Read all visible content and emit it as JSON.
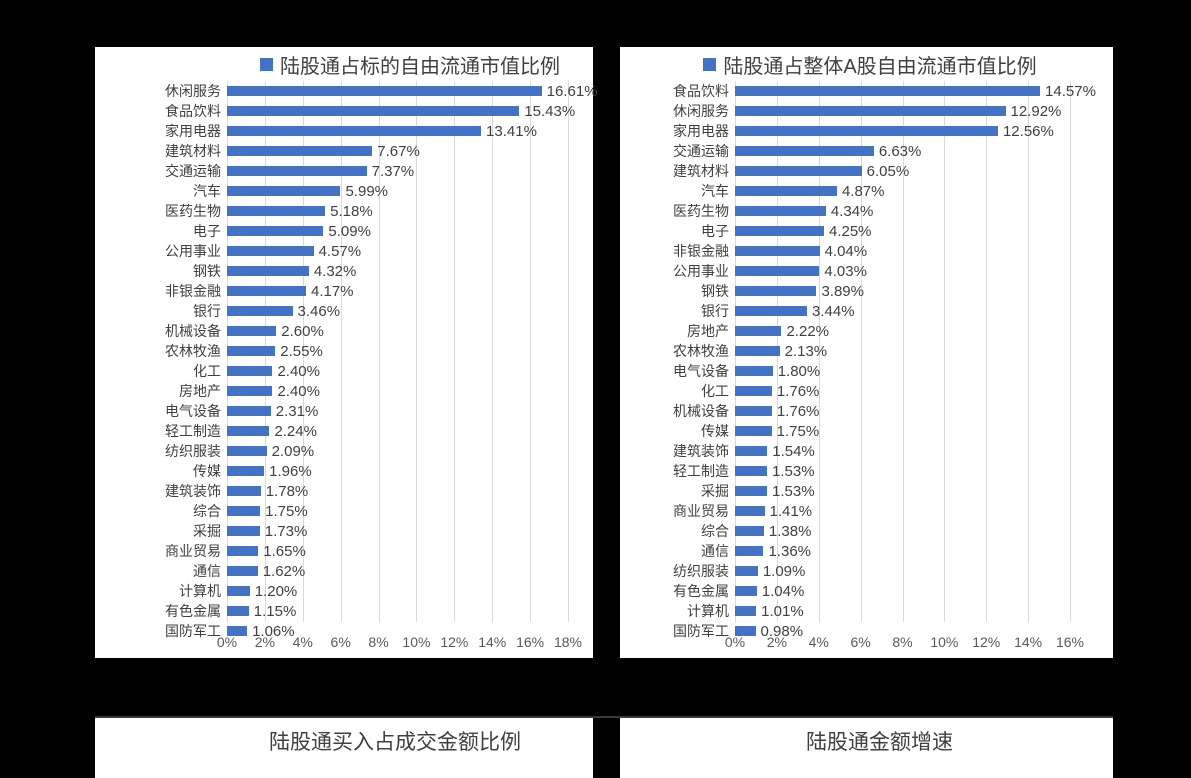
{
  "page": {
    "background": "#000000",
    "panel_background": "#FFFFFF"
  },
  "charts_meta": {
    "bar_color": "#4472C4",
    "gridline_color": "#D9D9D9",
    "title_color": "#404040",
    "category_color": "#3F3F3F",
    "value_color": "#404040",
    "tick_color": "#595959"
  },
  "chart_data": [
    {
      "type": "bar",
      "orientation": "horizontal",
      "title": "陆股通占标的自由流通市值比例",
      "legend_position": "top",
      "grid": true,
      "xlim": [
        0,
        18
      ],
      "x_ticks": [
        "0%",
        "2%",
        "4%",
        "6%",
        "8%",
        "10%",
        "12%",
        "14%",
        "16%",
        "18%"
      ],
      "categories": [
        "休闲服务",
        "食品饮料",
        "家用电器",
        "建筑材料",
        "交通运输",
        "汽车",
        "医药生物",
        "电子",
        "公用事业",
        "钢铁",
        "非银金融",
        "银行",
        "机械设备",
        "农林牧渔",
        "化工",
        "房地产",
        "电气设备",
        "轻工制造",
        "纺织服装",
        "传媒",
        "建筑装饰",
        "综合",
        "采掘",
        "商业贸易",
        "通信",
        "计算机",
        "有色金属",
        "国防军工"
      ],
      "values": [
        16.61,
        15.43,
        13.41,
        7.67,
        7.37,
        5.99,
        5.18,
        5.09,
        4.57,
        4.32,
        4.17,
        3.46,
        2.6,
        2.55,
        2.4,
        2.4,
        2.31,
        2.24,
        2.09,
        1.96,
        1.78,
        1.75,
        1.73,
        1.65,
        1.62,
        1.2,
        1.15,
        1.06
      ],
      "value_labels": [
        "16.61%",
        "15.43%",
        "13.41%",
        "7.67%",
        "7.37%",
        "5.99%",
        "5.18%",
        "5.09%",
        "4.57%",
        "4.32%",
        "4.17%",
        "3.46%",
        "2.60%",
        "2.55%",
        "2.40%",
        "2.40%",
        "2.31%",
        "2.24%",
        "2.09%",
        "1.96%",
        "1.78%",
        "1.75%",
        "1.73%",
        "1.65%",
        "1.62%",
        "1.20%",
        "1.15%",
        "1.06%"
      ]
    },
    {
      "type": "bar",
      "orientation": "horizontal",
      "title": "陆股通占整体A股自由流通市值比例",
      "legend_position": "top",
      "grid": true,
      "xlim": [
        0,
        16
      ],
      "x_ticks": [
        "0%",
        "2%",
        "4%",
        "6%",
        "8%",
        "10%",
        "12%",
        "14%",
        "16%"
      ],
      "categories": [
        "食品饮料",
        "休闲服务",
        "家用电器",
        "交通运输",
        "建筑材料",
        "汽车",
        "医药生物",
        "电子",
        "非银金融",
        "公用事业",
        "钢铁",
        "银行",
        "房地产",
        "农林牧渔",
        "电气设备",
        "化工",
        "机械设备",
        "传媒",
        "建筑装饰",
        "轻工制造",
        "采掘",
        "商业贸易",
        "综合",
        "通信",
        "纺织服装",
        "有色金属",
        "计算机",
        "国防军工"
      ],
      "values": [
        14.57,
        12.92,
        12.56,
        6.63,
        6.05,
        4.87,
        4.34,
        4.25,
        4.04,
        4.03,
        3.89,
        3.44,
        2.22,
        2.13,
        1.8,
        1.76,
        1.76,
        1.75,
        1.54,
        1.53,
        1.53,
        1.41,
        1.38,
        1.36,
        1.09,
        1.04,
        1.01,
        0.98
      ],
      "value_labels": [
        "14.57%",
        "12.92%",
        "12.56%",
        "6.63%",
        "6.05%",
        "4.87%",
        "4.34%",
        "4.25%",
        "4.04%",
        "4.03%",
        "3.89%",
        "3.44%",
        "2.22%",
        "2.13%",
        "1.80%",
        "1.76%",
        "1.76%",
        "1.75%",
        "1.54%",
        "1.53%",
        "1.53%",
        "1.41%",
        "1.38%",
        "1.36%",
        "1.09%",
        "1.04%",
        "1.01%",
        "0.98%"
      ]
    },
    {
      "type": "bar",
      "title": "陆股通买入占成交金额比例"
    },
    {
      "type": "bar",
      "title": "陆股通金额增速"
    }
  ]
}
